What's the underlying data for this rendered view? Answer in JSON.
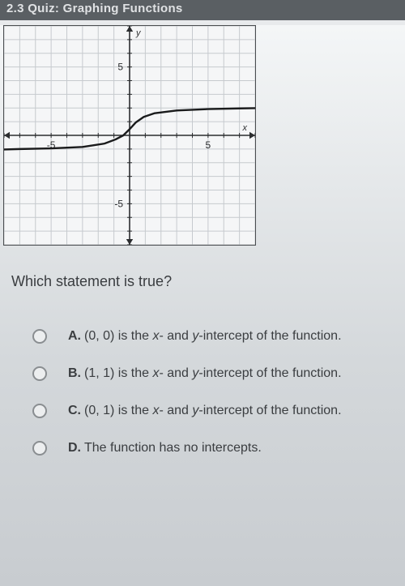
{
  "header": {
    "title": "2.3 Quiz: Graphing Functions"
  },
  "graph": {
    "type": "line",
    "xlim": [
      -8,
      8
    ],
    "ylim": [
      -8,
      8
    ],
    "xtick_step": 1,
    "ytick_step": 1,
    "xlabels": {
      "-5": "-5",
      "5": "5"
    },
    "ylabels": {
      "-5": "-5",
      "5": "5"
    },
    "axis_label_x": "x",
    "axis_label_y": "y",
    "grid_color": "#c6cace",
    "axis_color": "#2b2d2f",
    "background_color": "#f5f6f7",
    "curve_color": "#1a1b1c",
    "curve_width": 2.4,
    "label_fontsize": 12,
    "axis_label_fontsize": 11,
    "arrow_size": 7,
    "curve_points": [
      [
        -8.5,
        -1.05
      ],
      [
        -7,
        -1.0
      ],
      [
        -5,
        -0.95
      ],
      [
        -3,
        -0.85
      ],
      [
        -1.6,
        -0.6
      ],
      [
        -0.9,
        -0.3
      ],
      [
        -0.4,
        0.0
      ],
      [
        0.0,
        0.45
      ],
      [
        0.4,
        0.95
      ],
      [
        0.9,
        1.35
      ],
      [
        1.6,
        1.62
      ],
      [
        3,
        1.82
      ],
      [
        5,
        1.92
      ],
      [
        7,
        1.97
      ],
      [
        8.5,
        2.0
      ]
    ]
  },
  "question": {
    "text": "Which statement is true?"
  },
  "options": [
    {
      "letter": "A.",
      "text_pre": "(0, 0) is the ",
      "var1": "x",
      "mid": "- and ",
      "var2": "y",
      "text_post": "-intercept of the function."
    },
    {
      "letter": "B.",
      "text_pre": "(1, 1) is the ",
      "var1": "x",
      "mid": "- and ",
      "var2": "y",
      "text_post": "-intercept of the function."
    },
    {
      "letter": "C.",
      "text_pre": "(0, 1) is the ",
      "var1": "x",
      "mid": "- and ",
      "var2": "y",
      "text_post": "-intercept of the function."
    },
    {
      "letter": "D.",
      "text_pre": "The function has no intercepts.",
      "var1": "",
      "mid": "",
      "var2": "",
      "text_post": ""
    }
  ]
}
